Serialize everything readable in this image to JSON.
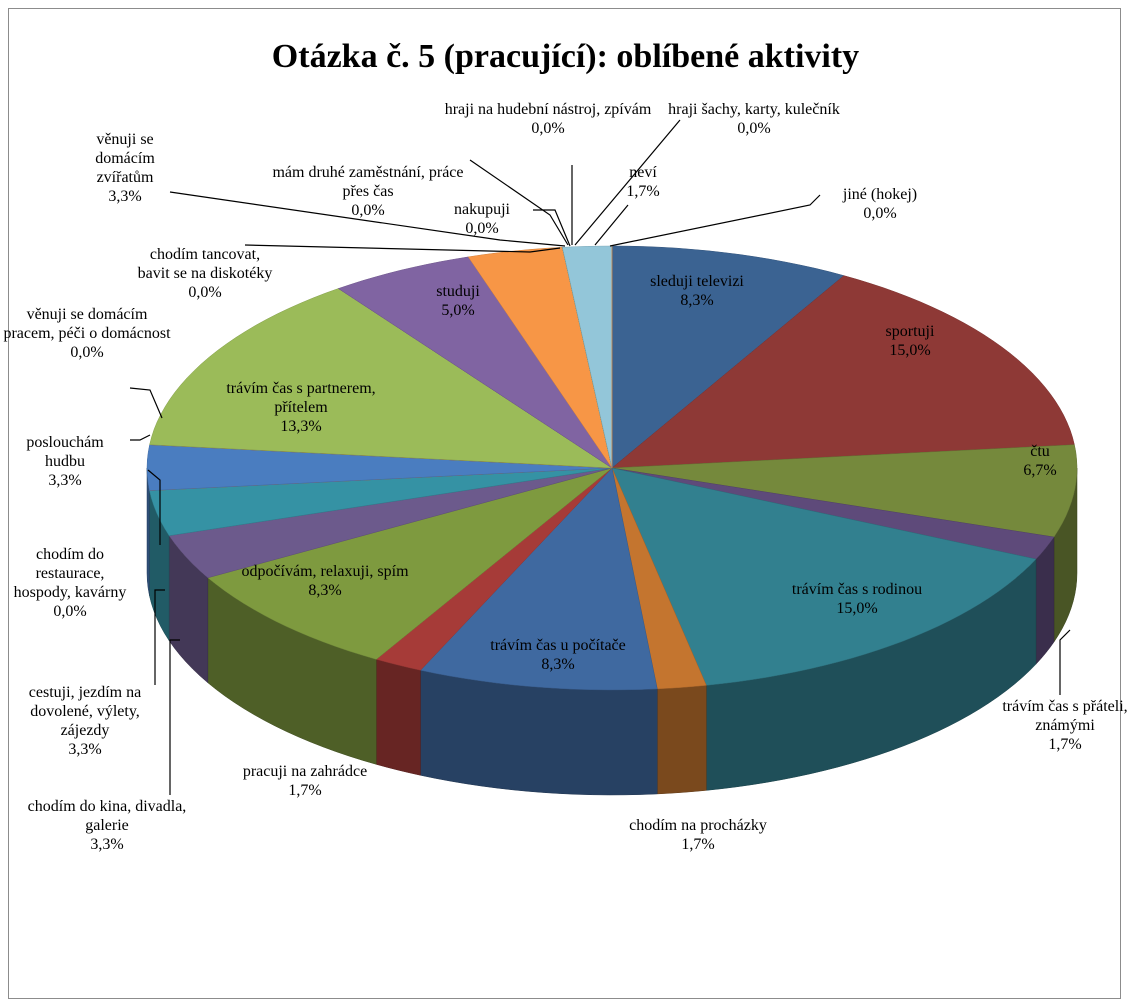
{
  "chart_data": {
    "type": "pie3d",
    "title": "Otázka č. 5 (pracující): oblíbené aktivity",
    "categories": [
      "sleduji televizi",
      "sportuji",
      "čtu",
      "trávím čas s přáteli, známými",
      "trávím čas s rodinou",
      "chodím na procházky",
      "trávím čas u počítače",
      "pracuji na zahrádce",
      "odpočívám, relaxuji, spím",
      "chodím do kina, divadla, galerie",
      "cestuji, jezdím na dovolené, výlety, zájezdy",
      "chodím do restaurace, hospody, kavárny",
      "poslouchám hudbu",
      "věnuji se domácím pracem, péči o domácnost",
      "trávím čas s partnerem, přítelem",
      "chodím tancovat, bavit se na diskotéky",
      "studuji",
      "věnuji se domácím zvířatům",
      "mám druhé zaměstnání, práce přes čas",
      "nakupuji",
      "hraji na hudební nástroj, zpívám",
      "hraji šachy, karty, kulečník",
      "neví",
      "jiné (hokej)"
    ],
    "values": [
      8.3,
      15.0,
      6.7,
      1.7,
      15.0,
      1.7,
      8.3,
      1.7,
      8.3,
      3.3,
      3.3,
      0.0,
      3.3,
      0.0,
      13.3,
      0.0,
      5.0,
      3.3,
      0.0,
      0.0,
      0.0,
      0.0,
      1.7,
      0.0
    ],
    "value_labels": [
      "8,3%",
      "15,0%",
      "6,7%",
      "1,7%",
      "15,0%",
      "1,7%",
      "8,3%",
      "1,7%",
      "8,3%",
      "3,3%",
      "3,3%",
      "0,0%",
      "3,3%",
      "0,0%",
      "13,3%",
      "0,0%",
      "5,0%",
      "3,3%",
      "0,0%",
      "0,0%",
      "0,0%",
      "0,0%",
      "1,7%",
      "0,0%"
    ],
    "colors": [
      "#3B6392",
      "#8E3936",
      "#75893C",
      "#5E4A7A",
      "#32808F",
      "#C4752F",
      "#3F69A0",
      "#A63B38",
      "#7E9A3F",
      "#6C5A8C",
      "#3592A4",
      "#E07B39",
      "#4A7DC0",
      "#C0504D",
      "#9BBB59",
      "#8064A2",
      "#8064A2",
      "#F79646",
      "#4BACC6",
      "#4F81BD",
      "#C0504D",
      "#9BBB59",
      "#93C6D9",
      "#F79646"
    ]
  }
}
